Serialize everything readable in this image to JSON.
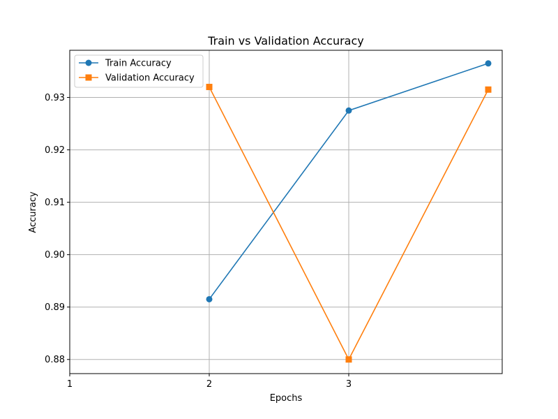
{
  "chart_data": {
    "type": "line",
    "title": "Train vs Validation Accuracy",
    "xlabel": "Epochs",
    "ylabel": "Accuracy",
    "xlim": [
      1,
      4.1
    ],
    "ylim": [
      0.8773,
      0.939
    ],
    "xticks": [
      1,
      2,
      3
    ],
    "xtick_labels": [
      "1",
      "2",
      "3"
    ],
    "yticks": [
      0.88,
      0.89,
      0.9,
      0.91,
      0.92,
      0.93
    ],
    "ytick_labels": [
      "0.88",
      "0.89",
      "0.90",
      "0.91",
      "0.92",
      "0.93"
    ],
    "grid": true,
    "legend_position": "upper-left",
    "x": [
      2,
      3,
      4
    ],
    "series": [
      {
        "name": "Train Accuracy",
        "marker": "circle",
        "color": "#1f77b4",
        "values": [
          0.8915,
          0.9275,
          0.9365
        ]
      },
      {
        "name": "Validation Accuracy",
        "marker": "square",
        "color": "#ff7f0e",
        "values": [
          0.932,
          0.88,
          0.9315
        ]
      }
    ]
  }
}
